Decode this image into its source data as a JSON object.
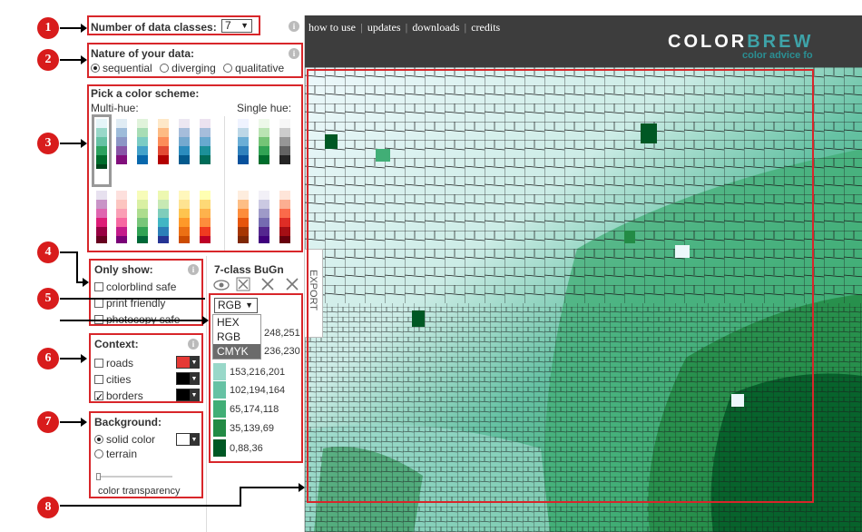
{
  "header": {
    "nav": [
      "how to use",
      "updates",
      "downloads",
      "credits"
    ],
    "logo_top": "COLORBREW",
    "logo_bottom": "color advice fo"
  },
  "panel_classes": {
    "label": "Number of data classes:",
    "value": "7"
  },
  "panel_nature": {
    "title": "Nature of your data:",
    "options": [
      "sequential",
      "diverging",
      "qualitative"
    ],
    "selected": "sequential"
  },
  "panel_scheme": {
    "title": "Pick a color scheme:",
    "multi_label": "Multi-hue:",
    "single_label": "Single hue:"
  },
  "panel_only_show": {
    "title": "Only show:",
    "options": [
      "colorblind safe",
      "print friendly",
      "photocopy safe"
    ]
  },
  "panel_context": {
    "title": "Context:",
    "options": [
      "roads",
      "cities",
      "borders"
    ],
    "borders_checked": true,
    "colors": [
      "#e53935",
      "#000000",
      "#000000"
    ]
  },
  "panel_background": {
    "title": "Background:",
    "options": [
      "solid color",
      "terrain"
    ],
    "selected": "solid color",
    "slider_label": "color transparency"
  },
  "scheme_info": {
    "title": "7-class BuGn",
    "export_label": "EXPORT",
    "format_selected": "RGB",
    "format_options": [
      "HEX",
      "RGB",
      "CMYK"
    ],
    "values": [
      "248,251",
      "236,230",
      "153,216,201",
      "102,194,164",
      "65,174,118",
      "35,139,69",
      "0,88,36"
    ],
    "colors": [
      "#edf8fb",
      "#ccece6",
      "#99d8c9",
      "#66c2a4",
      "#41ae76",
      "#238b45",
      "#005824"
    ]
  },
  "markers": [
    "1",
    "2",
    "3",
    "4",
    "5",
    "6",
    "7",
    "8"
  ],
  "icons": [
    "info-icon",
    "eye-icon",
    "x-box-icon",
    "chevron-down-icon"
  ],
  "colors": {
    "accent_red": "#d8262a",
    "header_bg": "#3d3d3d",
    "logo_teal": "#1b7a7c"
  }
}
